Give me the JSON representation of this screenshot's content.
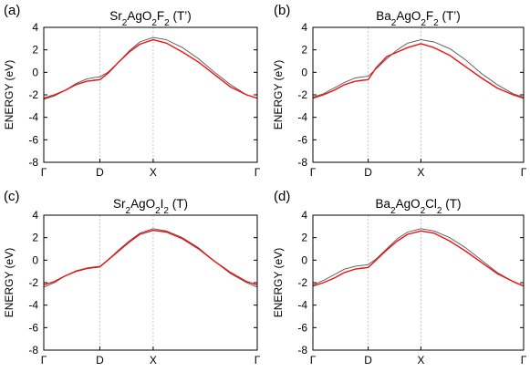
{
  "chart_data": [
    {
      "type": "line",
      "panel_label": "(a)",
      "title_parts": [
        {
          "text": "Sr",
          "sub": false
        },
        {
          "text": "2",
          "sub": true
        },
        {
          "text": "AgO",
          "sub": false
        },
        {
          "text": "2",
          "sub": true
        },
        {
          "text": "F",
          "sub": false
        },
        {
          "text": "2",
          "sub": true
        },
        {
          "text": " (T’)",
          "sub": false
        }
      ],
      "ylabel": "ENERGY (eV)",
      "ylim": [
        -8,
        4
      ],
      "yticks": [
        "4",
        "2",
        "0",
        "-2",
        "-4",
        "-6",
        "-8"
      ],
      "xticks": [
        "Γ",
        "D",
        "X",
        "Γ"
      ],
      "xlim": [
        0,
        4
      ],
      "kpoint_positions": [
        0,
        1.05,
        2.05,
        4
      ],
      "vertical_guides": "dotted at D and X",
      "series": [
        {
          "color": "#555555",
          "x": [
            0,
            0.2,
            0.4,
            0.6,
            0.8,
            0.95,
            1.05,
            1.2,
            1.4,
            1.6,
            1.8,
            2.05,
            2.3,
            2.6,
            2.9,
            3.2,
            3.5,
            3.8,
            4.0
          ],
          "y": [
            -2.4,
            -2.1,
            -1.6,
            -1.0,
            -0.6,
            -0.45,
            -0.4,
            0.0,
            0.9,
            1.9,
            2.7,
            3.1,
            2.9,
            2.2,
            1.2,
            0.0,
            -1.1,
            -2.0,
            -2.3
          ]
        },
        {
          "color": "#ee1111",
          "x": [
            0,
            0.2,
            0.4,
            0.6,
            0.8,
            0.95,
            1.05,
            1.2,
            1.4,
            1.6,
            1.8,
            2.05,
            2.3,
            2.6,
            2.9,
            3.2,
            3.5,
            3.8,
            4.0
          ],
          "y": [
            -2.3,
            -2.0,
            -1.6,
            -1.1,
            -0.8,
            -0.7,
            -0.65,
            -0.1,
            0.9,
            1.8,
            2.5,
            2.9,
            2.6,
            1.8,
            0.9,
            -0.2,
            -1.3,
            -2.0,
            -2.3
          ]
        }
      ]
    },
    {
      "type": "line",
      "panel_label": "(b)",
      "title_parts": [
        {
          "text": "Ba",
          "sub": false
        },
        {
          "text": "2",
          "sub": true
        },
        {
          "text": "AgO",
          "sub": false
        },
        {
          "text": "2",
          "sub": true
        },
        {
          "text": "F",
          "sub": false
        },
        {
          "text": "2",
          "sub": true
        },
        {
          "text": " (T’)",
          "sub": false
        }
      ],
      "ylabel": "ENERGY (eV)",
      "ylim": [
        -8,
        4
      ],
      "yticks": [
        "4",
        "2",
        "0",
        "-2",
        "-4",
        "-6",
        "-8"
      ],
      "xticks": [
        "Γ",
        "D",
        "X",
        "Γ"
      ],
      "xlim": [
        0,
        4
      ],
      "kpoint_positions": [
        0,
        1.05,
        2.05,
        4
      ],
      "vertical_guides": "dotted at D and X",
      "series": [
        {
          "color": "#555555",
          "x": [
            0,
            0.2,
            0.4,
            0.6,
            0.8,
            0.95,
            1.05,
            1.2,
            1.4,
            1.6,
            1.8,
            2.05,
            2.3,
            2.6,
            2.9,
            3.2,
            3.5,
            3.8,
            4.0
          ],
          "y": [
            -2.2,
            -1.9,
            -1.4,
            -0.9,
            -0.5,
            -0.4,
            -0.35,
            0.3,
            1.2,
            2.0,
            2.6,
            2.9,
            2.7,
            2.1,
            1.1,
            -0.1,
            -1.1,
            -1.9,
            -2.2
          ]
        },
        {
          "color": "#ee1111",
          "x": [
            0,
            0.2,
            0.4,
            0.6,
            0.8,
            0.95,
            1.05,
            1.2,
            1.4,
            1.6,
            1.8,
            2.05,
            2.3,
            2.6,
            2.9,
            3.2,
            3.5,
            3.8,
            4.0
          ],
          "y": [
            -2.3,
            -2.0,
            -1.6,
            -1.1,
            -0.8,
            -0.7,
            -0.65,
            0.4,
            1.4,
            1.8,
            2.2,
            2.55,
            2.2,
            1.5,
            0.5,
            -0.5,
            -1.4,
            -2.0,
            -2.3
          ]
        }
      ]
    },
    {
      "type": "line",
      "panel_label": "(c)",
      "title_parts": [
        {
          "text": "Sr",
          "sub": false
        },
        {
          "text": "2",
          "sub": true
        },
        {
          "text": "AgO",
          "sub": false
        },
        {
          "text": "2",
          "sub": true
        },
        {
          "text": "I",
          "sub": false
        },
        {
          "text": "2",
          "sub": true
        },
        {
          "text": " (T)",
          "sub": false
        }
      ],
      "ylabel": "ENERGY (eV)",
      "ylim": [
        -8,
        4
      ],
      "yticks": [
        "4",
        "2",
        "0",
        "-2",
        "-4",
        "-6",
        "-8"
      ],
      "xticks": [
        "Γ",
        "D",
        "X",
        "Γ"
      ],
      "xlim": [
        0,
        4
      ],
      "kpoint_positions": [
        0,
        1.05,
        2.05,
        4
      ],
      "vertical_guides": "dotted at D and X",
      "series": [
        {
          "color": "#555555",
          "x": [
            0,
            0.2,
            0.4,
            0.6,
            0.8,
            0.95,
            1.05,
            1.2,
            1.4,
            1.6,
            1.8,
            2.05,
            2.3,
            2.6,
            2.9,
            3.2,
            3.5,
            3.8,
            4.0
          ],
          "y": [
            -2.4,
            -2.0,
            -1.4,
            -0.95,
            -0.7,
            -0.6,
            -0.55,
            0.0,
            0.9,
            1.7,
            2.4,
            2.8,
            2.6,
            2.0,
            1.1,
            -0.1,
            -1.2,
            -2.0,
            -2.4
          ]
        },
        {
          "color": "#ee1111",
          "x": [
            0,
            0.2,
            0.4,
            0.6,
            0.8,
            0.95,
            1.05,
            1.2,
            1.4,
            1.6,
            1.8,
            2.05,
            2.3,
            2.6,
            2.9,
            3.2,
            3.5,
            3.8,
            4.0
          ],
          "y": [
            -2.2,
            -1.9,
            -1.4,
            -1.0,
            -0.75,
            -0.65,
            -0.6,
            0.0,
            0.8,
            1.6,
            2.3,
            2.65,
            2.5,
            1.9,
            1.0,
            -0.1,
            -1.1,
            -1.9,
            -2.2
          ]
        }
      ]
    },
    {
      "type": "line",
      "panel_label": "(d)",
      "title_parts": [
        {
          "text": "Ba",
          "sub": false
        },
        {
          "text": "2",
          "sub": true
        },
        {
          "text": "AgO",
          "sub": false
        },
        {
          "text": "2",
          "sub": true
        },
        {
          "text": "Cl",
          "sub": false
        },
        {
          "text": "2",
          "sub": true
        },
        {
          "text": " (T)",
          "sub": false
        }
      ],
      "ylabel": "ENERGY (eV)",
      "ylim": [
        -8,
        4
      ],
      "yticks": [
        "4",
        "2",
        "0",
        "-2",
        "-4",
        "-6",
        "-8"
      ],
      "xticks": [
        "Γ",
        "D",
        "X",
        "Γ"
      ],
      "xlim": [
        0,
        4
      ],
      "kpoint_positions": [
        0,
        1.05,
        2.05,
        4
      ],
      "vertical_guides": "dotted at D and X",
      "series": [
        {
          "color": "#555555",
          "x": [
            0,
            0.2,
            0.4,
            0.6,
            0.8,
            0.95,
            1.05,
            1.2,
            1.4,
            1.6,
            1.8,
            2.05,
            2.3,
            2.6,
            2.9,
            3.2,
            3.5,
            3.8,
            4.0
          ],
          "y": [
            -2.2,
            -1.8,
            -1.3,
            -0.8,
            -0.55,
            -0.45,
            -0.4,
            0.1,
            1.0,
            1.9,
            2.5,
            2.8,
            2.6,
            2.0,
            1.1,
            0.0,
            -1.1,
            -1.9,
            -2.3
          ]
        },
        {
          "color": "#ee1111",
          "x": [
            0,
            0.2,
            0.4,
            0.6,
            0.8,
            0.95,
            1.05,
            1.2,
            1.4,
            1.6,
            1.8,
            2.05,
            2.3,
            2.6,
            2.9,
            3.2,
            3.5,
            3.8,
            4.0
          ],
          "y": [
            -2.3,
            -2.0,
            -1.6,
            -1.1,
            -0.8,
            -0.7,
            -0.65,
            0.0,
            0.9,
            1.7,
            2.3,
            2.6,
            2.4,
            1.7,
            0.8,
            -0.2,
            -1.2,
            -1.9,
            -2.3
          ]
        }
      ]
    }
  ]
}
